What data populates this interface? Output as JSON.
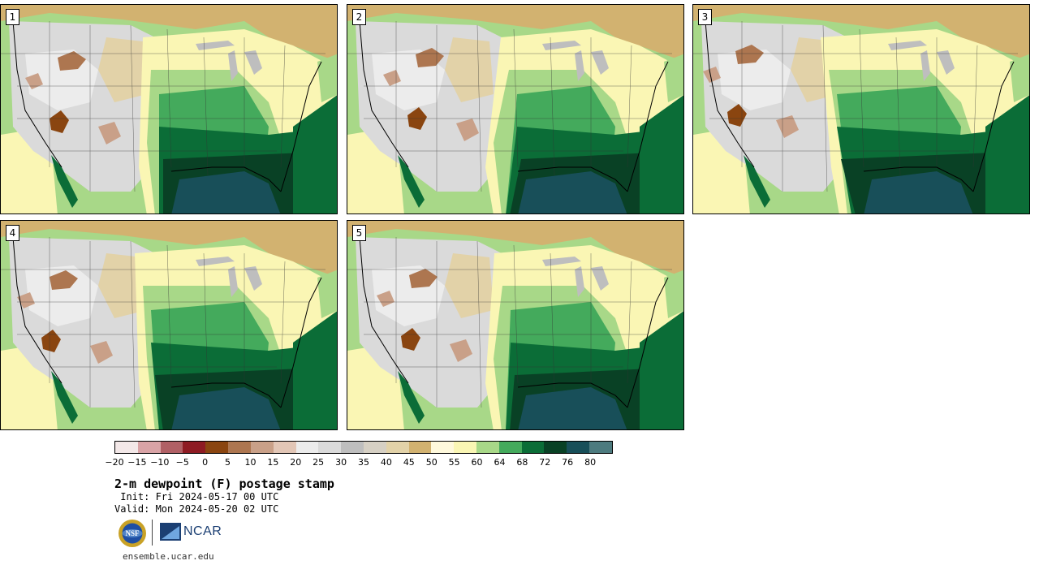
{
  "panels": [
    {
      "label": "1"
    },
    {
      "label": "2"
    },
    {
      "label": "3"
    },
    {
      "label": "4"
    },
    {
      "label": "5"
    }
  ],
  "colorbar": {
    "colors": [
      "#f3e8e8",
      "#d9a3a6",
      "#b06065",
      "#8e1b23",
      "#8a4510",
      "#ad7650",
      "#c9a088",
      "#e2c6b6",
      "#ececec",
      "#dadada",
      "#bebebe",
      "#d6d0c4",
      "#e2d2a8",
      "#d2b270",
      "#fff9dc",
      "#faf6b4",
      "#a8d888",
      "#44aa5c",
      "#0b6d37",
      "#094125",
      "#184f59",
      "#4d7b7f"
    ],
    "ticks": [
      "−20",
      "−15",
      "−10",
      "−5",
      "0",
      "5",
      "10",
      "15",
      "20",
      "25",
      "30",
      "35",
      "40",
      "45",
      "50",
      "55",
      "60",
      "64",
      "68",
      "72",
      "76",
      "80"
    ]
  },
  "title": "2-m dewpoint (F) postage stamp",
  "init": " Init: Fri 2024-05-17 00 UTC",
  "valid": "Valid: Mon 2024-05-20 02 UTC",
  "logos": {
    "nsf_text": "NSF",
    "ncar_text": "NCAR"
  },
  "url": "ensemble.ucar.edu"
}
